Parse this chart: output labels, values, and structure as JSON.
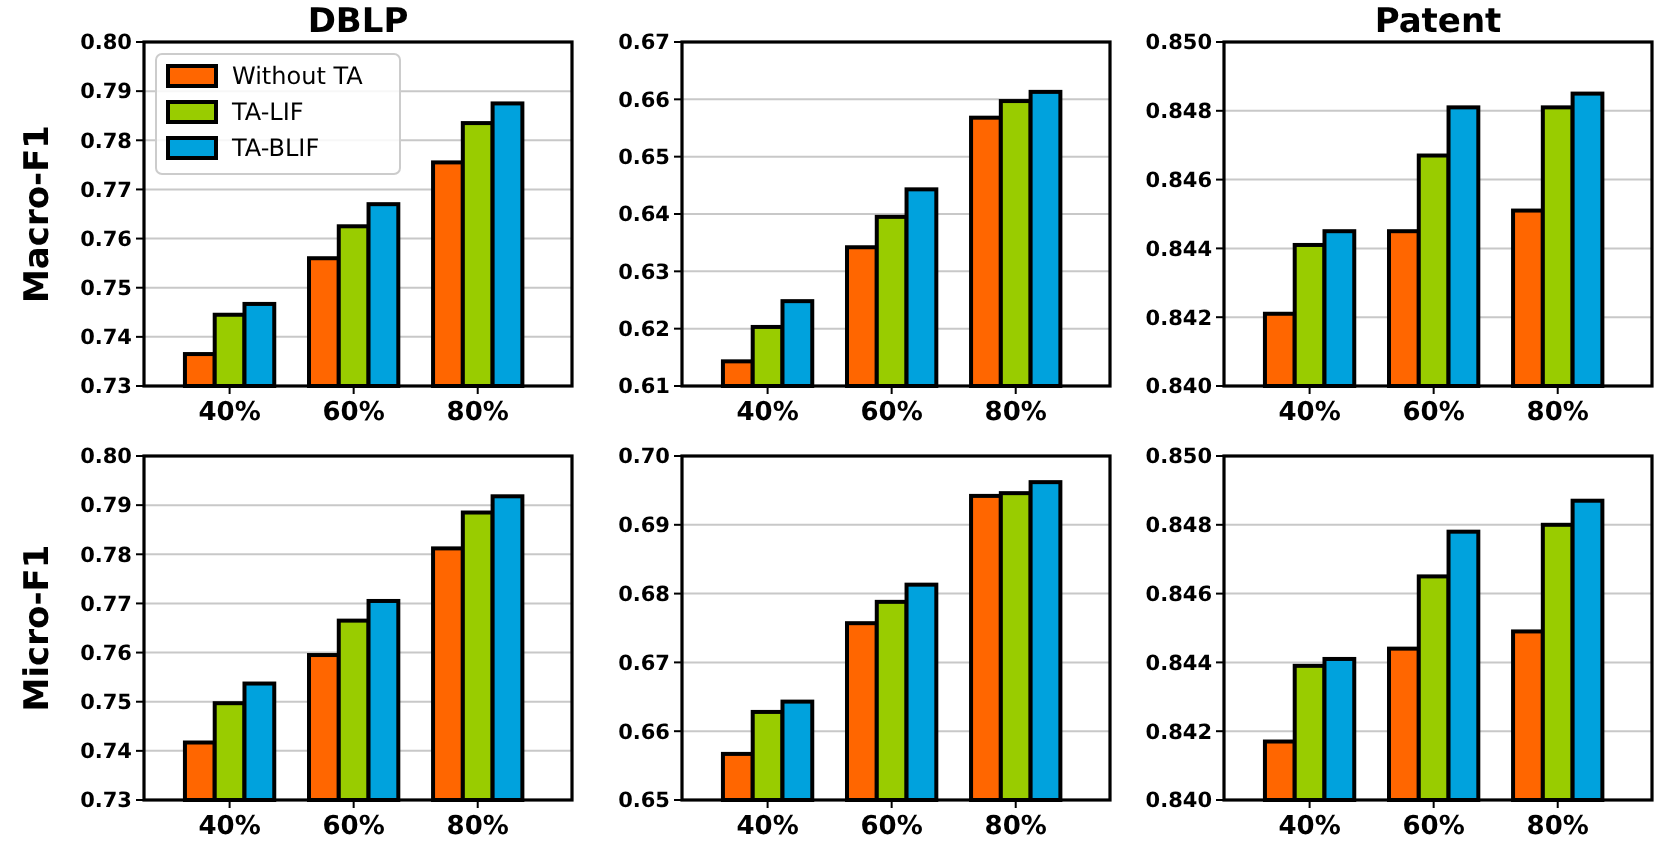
{
  "chart_data": [
    {
      "type": "bar",
      "title": "DBLP",
      "ylabel": "Macro-F1",
      "categories": [
        "40%",
        "60%",
        "80%"
      ],
      "ylim": [
        0.73,
        0.8
      ],
      "yticks": [
        0.73,
        0.74,
        0.75,
        0.76,
        0.77,
        0.78,
        0.79,
        {
          "value": 0.8,
          "label": "0.80"
        }
      ],
      "grid": "y",
      "legend": "top left",
      "series": [
        {
          "name": "Without TA",
          "color": "#ff6600",
          "values": [
            0.7365,
            0.756,
            0.7755
          ]
        },
        {
          "name": "TA-LIF",
          "color": "#99cc00",
          "values": [
            0.7445,
            0.7625,
            0.7835
          ]
        },
        {
          "name": "TA-BLIF",
          "color": "#00a2dd",
          "values": [
            0.7467,
            0.767,
            0.7875
          ]
        }
      ]
    },
    {
      "type": "bar",
      "categories": [
        "40%",
        "60%",
        "80%"
      ],
      "ylim": [
        0.61,
        0.67
      ],
      "yticks": [
        0.61,
        0.62,
        0.63,
        0.64,
        0.65,
        0.66,
        0.67
      ],
      "grid": "y",
      "series": [
        {
          "color": "#ff6600",
          "values": [
            0.6143,
            0.6342,
            0.6568
          ]
        },
        {
          "color": "#99cc00",
          "values": [
            0.6203,
            0.6395,
            0.6597
          ]
        },
        {
          "color": "#00a2dd",
          "values": [
            0.6248,
            0.6443,
            0.6613
          ]
        }
      ]
    },
    {
      "type": "bar",
      "title": "Patent",
      "categories": [
        "40%",
        "60%",
        "80%"
      ],
      "ylim": [
        0.84,
        0.85
      ],
      "yticks": [
        {
          "value": 0.84,
          "label": "0.840"
        },
        0.842,
        0.844,
        0.846,
        0.848,
        {
          "value": 0.85,
          "label": "0.850"
        }
      ],
      "grid": "y",
      "series": [
        {
          "color": "#ff6600",
          "values": [
            0.8421,
            0.8445,
            0.8451
          ]
        },
        {
          "color": "#99cc00",
          "values": [
            0.8441,
            0.8467,
            0.8481
          ]
        },
        {
          "color": "#00a2dd",
          "values": [
            0.8445,
            0.8481,
            0.8485
          ]
        }
      ]
    },
    {
      "type": "bar",
      "ylabel": "Micro-F1",
      "categories": [
        "40%",
        "60%",
        "80%"
      ],
      "ylim": [
        0.73,
        0.8
      ],
      "yticks": [
        0.73,
        0.74,
        0.75,
        0.76,
        0.77,
        0.78,
        0.79,
        {
          "value": 0.8,
          "label": "0.80"
        }
      ],
      "grid": "y",
      "series": [
        {
          "color": "#ff6600",
          "values": [
            0.7417,
            0.7595,
            0.7812
          ]
        },
        {
          "color": "#99cc00",
          "values": [
            0.7497,
            0.7665,
            0.7885
          ]
        },
        {
          "color": "#00a2dd",
          "values": [
            0.7537,
            0.7705,
            0.7918
          ]
        }
      ]
    },
    {
      "type": "bar",
      "categories": [
        "40%",
        "60%",
        "80%"
      ],
      "ylim": [
        0.65,
        0.7
      ],
      "yticks": [
        0.65,
        0.66,
        0.67,
        0.68,
        0.69,
        {
          "value": 0.7,
          "label": "0.70"
        }
      ],
      "grid": "y",
      "series": [
        {
          "color": "#ff6600",
          "values": [
            0.6567,
            0.6757,
            0.6942
          ]
        },
        {
          "color": "#99cc00",
          "values": [
            0.6628,
            0.6788,
            0.6946
          ]
        },
        {
          "color": "#00a2dd",
          "values": [
            0.6643,
            0.6813,
            0.6962
          ]
        }
      ]
    },
    {
      "type": "bar",
      "categories": [
        "40%",
        "60%",
        "80%"
      ],
      "ylim": [
        0.84,
        0.85
      ],
      "yticks": [
        {
          "value": 0.84,
          "label": "0.840"
        },
        0.842,
        0.844,
        0.846,
        0.848,
        {
          "value": 0.85,
          "label": "0.850"
        }
      ],
      "grid": "y",
      "series": [
        {
          "color": "#ff6600",
          "values": [
            0.8417,
            0.8444,
            0.8449
          ]
        },
        {
          "color": "#99cc00",
          "values": [
            0.8439,
            0.8465,
            0.848
          ]
        },
        {
          "color": "#00a2dd",
          "values": [
            0.8441,
            0.8478,
            0.8487
          ]
        }
      ]
    }
  ]
}
